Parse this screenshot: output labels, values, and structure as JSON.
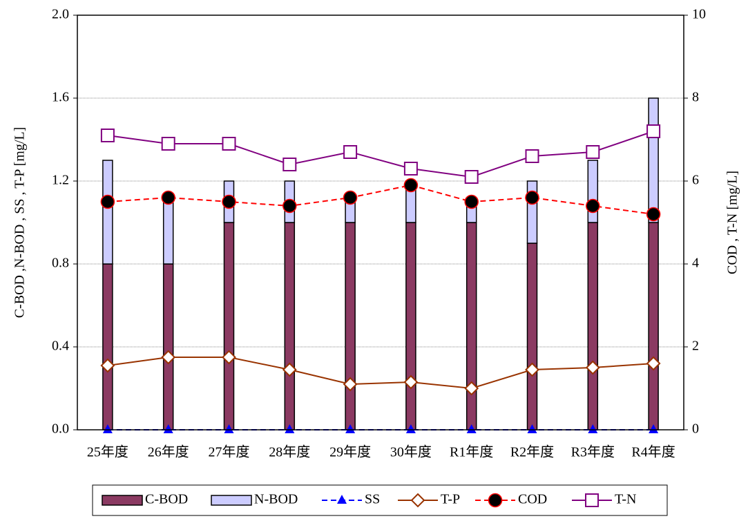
{
  "chart_data": {
    "type": "bar",
    "categories": [
      "25年度",
      "26年度",
      "27年度",
      "28年度",
      "29年度",
      "30年度",
      "R1年度",
      "R2年度",
      "R3年度",
      "R4年度"
    ],
    "ylabel": "C-BOD ,N-BOD , SS , T-P [mg/L]",
    "y2label": "COD , T-N [mg/L]",
    "ylim": [
      0,
      2
    ],
    "yticks": [
      {
        "value": 0,
        "label": "0.0"
      },
      0.4,
      0.8,
      1.2,
      1.6,
      {
        "value": 2,
        "label": "2.0"
      }
    ],
    "y2lim": [
      0,
      10
    ],
    "y2ticks": [
      0,
      2,
      4,
      6,
      8,
      10
    ],
    "grid": true,
    "legend": "bottom",
    "series": [
      {
        "name": "C-BOD",
        "type": "bar",
        "color": "#8b3a62",
        "values": [
          0.8,
          0.8,
          1.0,
          1.0,
          1.0,
          1.0,
          1.0,
          0.9,
          1.0,
          1.0
        ]
      },
      {
        "name": "N-BOD",
        "type": "bar",
        "color": "#ccccff",
        "values": [
          0.5,
          0.3,
          0.2,
          0.2,
          0.1,
          0.2,
          0.1,
          0.3,
          0.3,
          0.6
        ]
      },
      {
        "name": "SS",
        "type": "line",
        "color": "#0000ff",
        "dash": true,
        "marker": "triangle",
        "values": [
          0,
          0,
          0,
          0,
          0,
          0,
          0,
          0,
          0,
          0
        ]
      },
      {
        "name": "T-P",
        "type": "line",
        "color": "#993300",
        "dash": false,
        "marker": "diamond",
        "values": [
          0.31,
          0.35,
          0.35,
          0.29,
          0.22,
          0.23,
          0.2,
          0.29,
          0.3,
          0.32
        ]
      },
      {
        "name": "COD",
        "type": "line",
        "color": "#ff0000",
        "dash": true,
        "marker": "circle",
        "axis": "y2",
        "values": [
          5.5,
          5.6,
          5.5,
          5.4,
          5.6,
          5.9,
          5.5,
          5.6,
          5.4,
          5.2
        ]
      },
      {
        "name": "T-N",
        "type": "line",
        "color": "#800080",
        "dash": false,
        "marker": "square",
        "axis": "y2",
        "values": [
          7.1,
          6.9,
          6.9,
          6.4,
          6.7,
          6.3,
          6.1,
          6.6,
          6.7,
          7.2
        ]
      }
    ]
  }
}
